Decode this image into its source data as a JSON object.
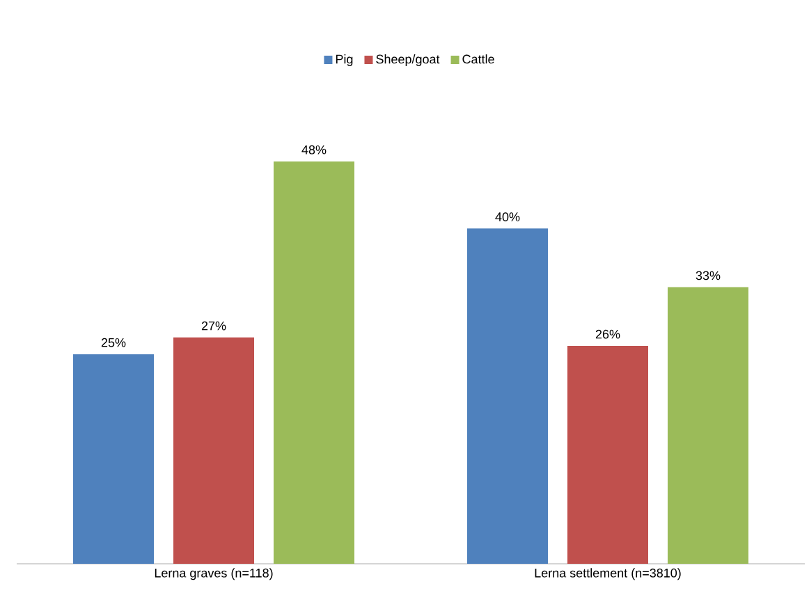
{
  "chart_data": {
    "type": "bar",
    "categories": [
      "Lerna graves (n=118)",
      "Lerna settlement (n=3810)"
    ],
    "series": [
      {
        "name": "Pig",
        "color": "#4f81bd",
        "values": [
          25,
          40
        ],
        "value_labels": [
          "25%",
          "40%"
        ]
      },
      {
        "name": "Sheep/goat",
        "color": "#c0504d",
        "values": [
          27,
          26
        ],
        "value_labels": [
          "27%",
          "26%"
        ]
      },
      {
        "name": "Cattle",
        "color": "#9bbb59",
        "values": [
          48,
          33
        ],
        "value_labels": [
          "48%",
          "33%"
        ]
      }
    ],
    "legend": "top"
  }
}
